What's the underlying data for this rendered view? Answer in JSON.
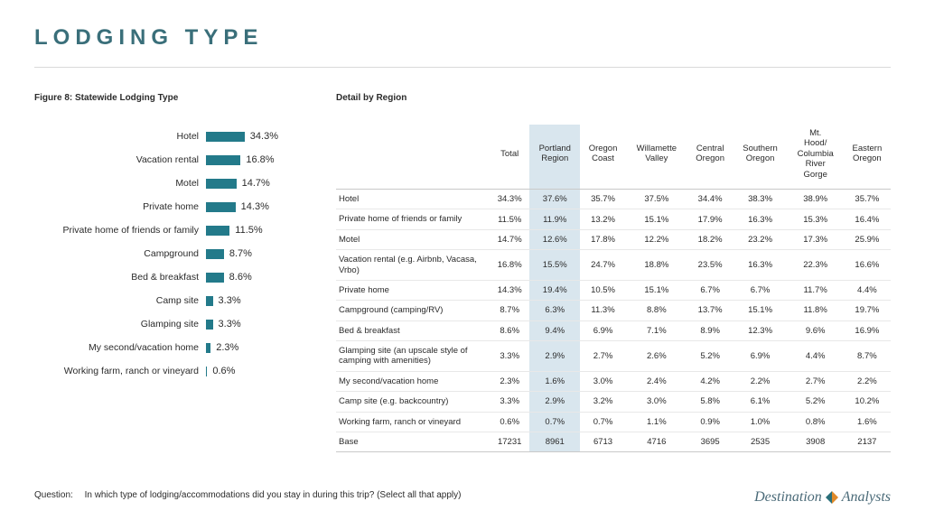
{
  "title": "LODGING TYPE",
  "chart": {
    "title": "Figure 8: Statewide Lodging Type",
    "bar_color": "#237a8a",
    "max_pct": 35,
    "rows": [
      {
        "label": "Hotel",
        "value": 34.3,
        "text": "34.3%"
      },
      {
        "label": "Vacation rental",
        "value": 16.8,
        "text": "16.8%"
      },
      {
        "label": "Motel",
        "value": 14.7,
        "text": "14.7%"
      },
      {
        "label": "Private home",
        "value": 14.3,
        "text": "14.3%"
      },
      {
        "label": "Private home of friends or family",
        "value": 11.5,
        "text": "11.5%"
      },
      {
        "label": "Campground",
        "value": 8.7,
        "text": "8.7%"
      },
      {
        "label": "Bed & breakfast",
        "value": 8.6,
        "text": "8.6%"
      },
      {
        "label": "Camp site",
        "value": 3.3,
        "text": "3.3%"
      },
      {
        "label": "Glamping site",
        "value": 3.3,
        "text": "3.3%"
      },
      {
        "label": "My second/vacation home",
        "value": 2.3,
        "text": "2.3%"
      },
      {
        "label": "Working farm, ranch or vineyard",
        "value": 0.6,
        "text": "0.6%"
      }
    ]
  },
  "table": {
    "title": "Detail by Region",
    "highlight_col": 1,
    "columns": [
      "",
      "Total",
      "Portland Region",
      "Oregon Coast",
      "Willamette Valley",
      "Central Oregon",
      "Southern Oregon",
      "Mt. Hood/ Columbia River Gorge",
      "Eastern Oregon"
    ],
    "rows": [
      [
        "Hotel",
        "34.3%",
        "37.6%",
        "35.7%",
        "37.5%",
        "34.4%",
        "38.3%",
        "38.9%",
        "35.7%"
      ],
      [
        "Private home of friends or family",
        "11.5%",
        "11.9%",
        "13.2%",
        "15.1%",
        "17.9%",
        "16.3%",
        "15.3%",
        "16.4%"
      ],
      [
        "Motel",
        "14.7%",
        "12.6%",
        "17.8%",
        "12.2%",
        "18.2%",
        "23.2%",
        "17.3%",
        "25.9%"
      ],
      [
        "Vacation rental (e.g. Airbnb, Vacasa, Vrbo)",
        "16.8%",
        "15.5%",
        "24.7%",
        "18.8%",
        "23.5%",
        "16.3%",
        "22.3%",
        "16.6%"
      ],
      [
        "Private home",
        "14.3%",
        "19.4%",
        "10.5%",
        "15.1%",
        "6.7%",
        "6.7%",
        "11.7%",
        "4.4%"
      ],
      [
        "Campground (camping/RV)",
        "8.7%",
        "6.3%",
        "11.3%",
        "8.8%",
        "13.7%",
        "15.1%",
        "11.8%",
        "19.7%"
      ],
      [
        "Bed & breakfast",
        "8.6%",
        "9.4%",
        "6.9%",
        "7.1%",
        "8.9%",
        "12.3%",
        "9.6%",
        "16.9%"
      ],
      [
        "Glamping site (an upscale style of camping with amenities)",
        "3.3%",
        "2.9%",
        "2.7%",
        "2.6%",
        "5.2%",
        "6.9%",
        "4.4%",
        "8.7%"
      ],
      [
        "My second/vacation home",
        "2.3%",
        "1.6%",
        "3.0%",
        "2.4%",
        "4.2%",
        "2.2%",
        "2.7%",
        "2.2%"
      ],
      [
        "Camp site (e.g. backcountry)",
        "3.3%",
        "2.9%",
        "3.2%",
        "3.0%",
        "5.8%",
        "6.1%",
        "5.2%",
        "10.2%"
      ],
      [
        "Working farm, ranch or vineyard",
        "0.6%",
        "0.7%",
        "0.7%",
        "1.1%",
        "0.9%",
        "1.0%",
        "0.8%",
        "1.6%"
      ],
      [
        "Base",
        "17231",
        "8961",
        "6713",
        "4716",
        "3695",
        "2535",
        "3908",
        "2137"
      ]
    ]
  },
  "question": {
    "label": "Question:",
    "text": "In which type of lodging/accommodations did you stay in during this trip? (Select all that apply)"
  },
  "brand": {
    "word1": "Destination",
    "word2": "Analysts"
  }
}
